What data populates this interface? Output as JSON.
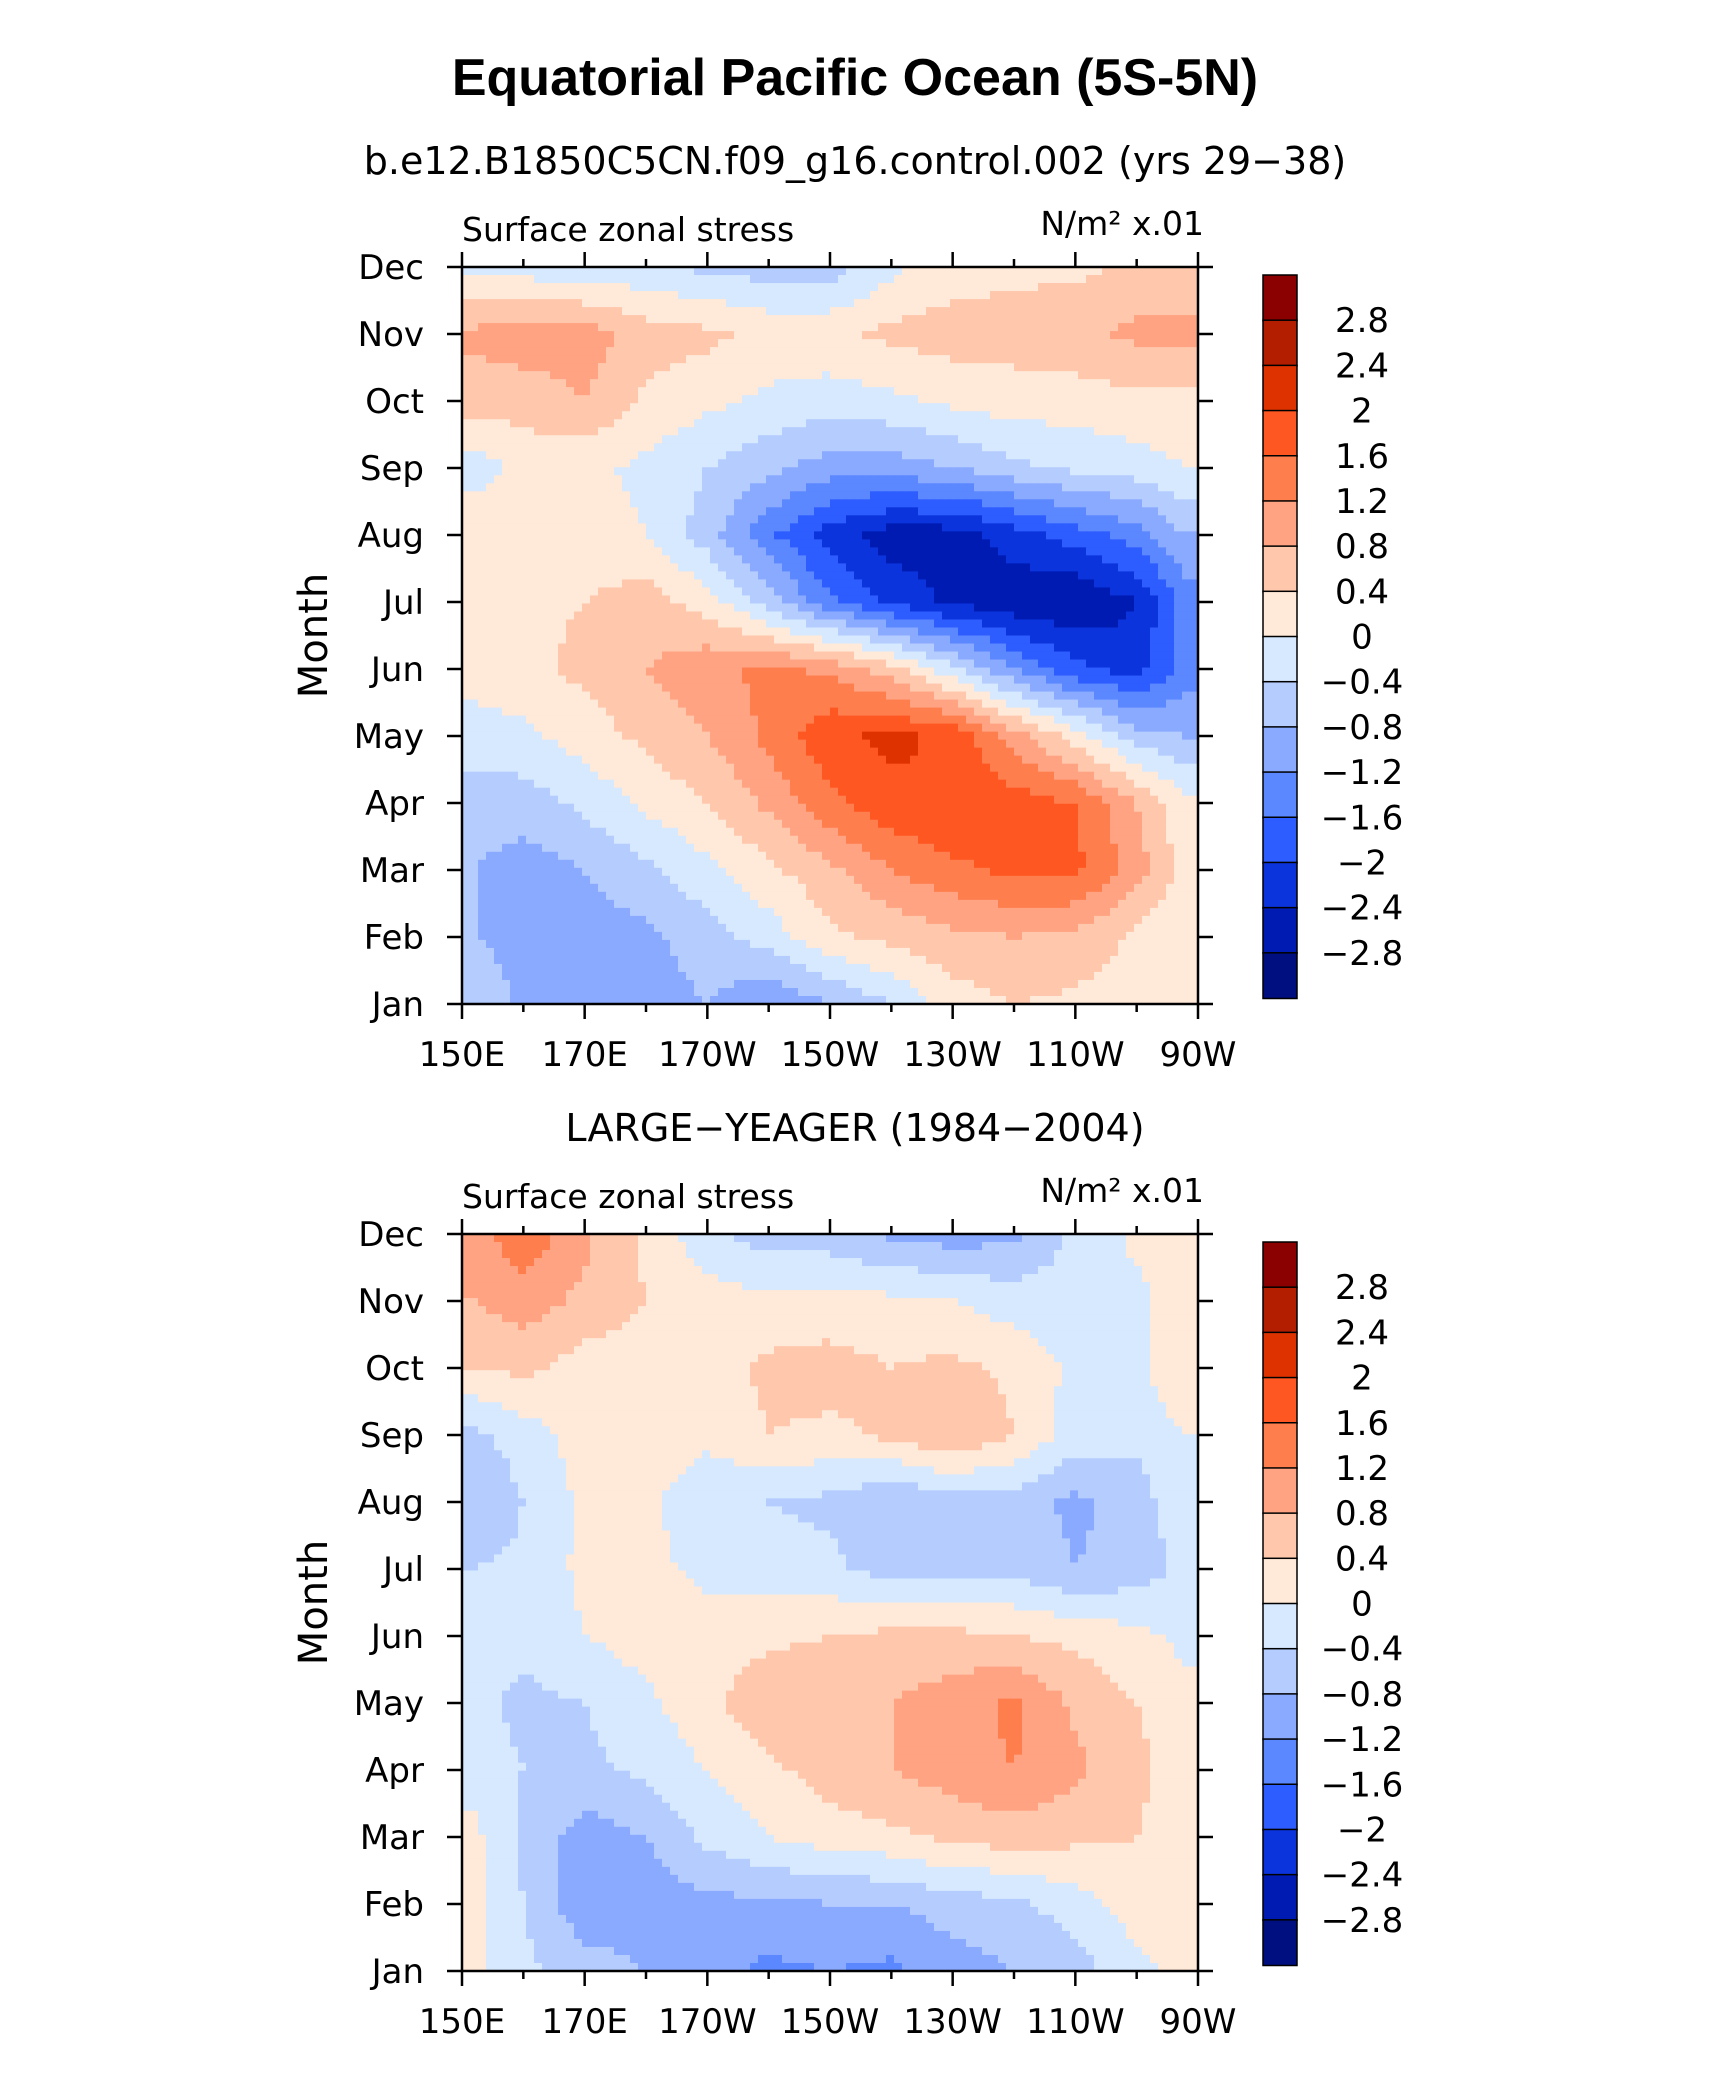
{
  "title": "Equatorial Pacific Ocean (5S-5N)",
  "colorscale": {
    "levels": [
      "2.8",
      "2.4",
      "2",
      "1.6",
      "1.2",
      "0.8",
      "0.4",
      "0",
      "−0.4",
      "−0.8",
      "−1.2",
      "−1.6",
      "−2",
      "−2.4",
      "−2.8"
    ],
    "colors": [
      "#8b0000",
      "#b41e00",
      "#de3300",
      "#ff5722",
      "#ff7e4d",
      "#ffa382",
      "#ffc8ad",
      "#ffe9d8",
      "#d6e9ff",
      "#b5ccff",
      "#8aaaff",
      "#5b87ff",
      "#2d5cff",
      "#0c34dd",
      "#001bb2",
      "#000f80"
    ]
  },
  "chart_data": [
    {
      "type": "heatmap",
      "subtitle": "b.e12.B1850C5CN.f09_g16.control.002 (yrs 29−38)",
      "left_label": "Surface zonal stress",
      "right_label": "N/m² x.01",
      "ylabel": "Month",
      "x_tick_labels": [
        "150E",
        "170E",
        "170W",
        "150W",
        "130W",
        "110W",
        "90W"
      ],
      "x_ticks": [
        150,
        170,
        190,
        210,
        230,
        250,
        270
      ],
      "xlim": [
        150,
        270
      ],
      "y_tick_labels": [
        "Jan",
        "Feb",
        "Mar",
        "Apr",
        "May",
        "Jun",
        "Jul",
        "Aug",
        "Sep",
        "Oct",
        "Nov",
        "Dec"
      ],
      "ylim": [
        1,
        12
      ],
      "x": [
        152,
        160,
        170,
        180,
        190,
        200,
        210,
        220,
        230,
        240,
        250,
        260,
        268
      ],
      "y": [
        1,
        2,
        3,
        4,
        5,
        6,
        7,
        8,
        9,
        10,
        11,
        12
      ],
      "z": [
        [
          -0.4,
          -0.9,
          -1.0,
          -1.0,
          -0.8,
          -1.2,
          -0.8,
          -0.4,
          0.2,
          0.4,
          0.3,
          0.2,
          0.0
        ],
        [
          -0.8,
          -1.0,
          -1.0,
          -0.9,
          -0.6,
          -0.2,
          0.3,
          0.5,
          0.7,
          0.8,
          0.7,
          0.3,
          0.0
        ],
        [
          -0.8,
          -1.0,
          -0.8,
          -0.5,
          -0.1,
          0.3,
          0.7,
          1.2,
          1.5,
          1.7,
          1.7,
          1.0,
          0.2
        ],
        [
          -0.6,
          -0.6,
          -0.3,
          0.1,
          0.4,
          0.9,
          1.5,
          1.9,
          2.0,
          1.8,
          1.6,
          0.8,
          0.1
        ],
        [
          -0.2,
          -0.1,
          0.2,
          0.5,
          0.8,
          1.3,
          1.9,
          2.1,
          1.9,
          1.0,
          0.2,
          -0.6,
          -0.8
        ],
        [
          0.2,
          0.3,
          0.5,
          0.8,
          1.1,
          1.3,
          1.1,
          0.6,
          -0.3,
          -1.2,
          -1.9,
          -2.2,
          -1.4
        ],
        [
          0.3,
          0.3,
          0.4,
          0.6,
          0.2,
          -0.6,
          -1.5,
          -2.1,
          -2.5,
          -2.7,
          -2.8,
          -2.4,
          -1.4
        ],
        [
          0.3,
          0.3,
          0.2,
          0.0,
          -0.6,
          -1.5,
          -2.2,
          -2.6,
          -2.6,
          -2.2,
          -1.8,
          -1.4,
          -0.8
        ],
        [
          -0.2,
          0.1,
          0.1,
          -0.1,
          -0.4,
          -0.7,
          -1.0,
          -1.0,
          -0.8,
          -0.5,
          -0.3,
          -0.2,
          0.0
        ],
        [
          0.6,
          0.6,
          0.8,
          0.3,
          0.1,
          -0.1,
          -0.2,
          -0.1,
          0.1,
          0.2,
          0.2,
          0.3,
          0.3
        ],
        [
          0.9,
          1.0,
          1.0,
          0.6,
          0.5,
          0.3,
          0.3,
          0.5,
          0.6,
          0.6,
          0.7,
          0.9,
          0.9
        ],
        [
          -0.1,
          -0.2,
          -0.3,
          -0.3,
          -0.5,
          -0.6,
          -0.6,
          -0.1,
          0.2,
          0.3,
          0.3,
          0.5,
          0.6
        ]
      ]
    },
    {
      "type": "heatmap",
      "subtitle": "LARGE−YEAGER (1984−2004)",
      "left_label": "Surface zonal stress",
      "right_label": "N/m² x.01",
      "ylabel": "Month",
      "x_tick_labels": [
        "150E",
        "170E",
        "170W",
        "150W",
        "130W",
        "110W",
        "90W"
      ],
      "x_ticks": [
        150,
        170,
        190,
        210,
        230,
        250,
        270
      ],
      "xlim": [
        150,
        270
      ],
      "y_tick_labels": [
        "Jan",
        "Feb",
        "Mar",
        "Apr",
        "May",
        "Jun",
        "Jul",
        "Aug",
        "Sep",
        "Oct",
        "Nov",
        "Dec"
      ],
      "ylim": [
        1,
        12
      ],
      "x": [
        152,
        160,
        170,
        180,
        190,
        200,
        210,
        220,
        230,
        240,
        250,
        260,
        268
      ],
      "y": [
        1,
        2,
        3,
        4,
        5,
        6,
        7,
        8,
        9,
        10,
        11,
        12
      ],
      "z": [
        [
          0.1,
          -0.3,
          -0.6,
          -0.8,
          -1.0,
          -1.3,
          -1.2,
          -1.3,
          -1.0,
          -0.8,
          -0.6,
          -0.1,
          0.1
        ],
        [
          0.1,
          -0.4,
          -1.1,
          -1.0,
          -0.9,
          -0.9,
          -0.8,
          -0.8,
          -0.6,
          -0.5,
          -0.2,
          0.2,
          0.2
        ],
        [
          0.1,
          -0.5,
          -1.0,
          -0.8,
          -0.3,
          0.0,
          0.2,
          0.3,
          0.5,
          0.6,
          0.5,
          0.4,
          0.2
        ],
        [
          -0.2,
          -0.4,
          -0.5,
          -0.3,
          0.0,
          0.3,
          0.6,
          0.8,
          1.0,
          1.2,
          0.9,
          0.5,
          0.2
        ],
        [
          -0.3,
          -0.5,
          -0.4,
          -0.1,
          0.3,
          0.7,
          0.8,
          0.8,
          1.0,
          1.3,
          0.7,
          0.4,
          0.1
        ],
        [
          -0.2,
          -0.3,
          0.0,
          0.2,
          0.2,
          0.3,
          0.4,
          0.5,
          0.5,
          0.4,
          0.3,
          0.1,
          -0.1
        ],
        [
          -0.4,
          -0.3,
          0.1,
          0.1,
          -0.1,
          -0.2,
          -0.3,
          -0.6,
          -0.5,
          -0.5,
          -0.8,
          -0.6,
          -0.3
        ],
        [
          -0.8,
          -0.4,
          0.1,
          0.1,
          -0.3,
          -0.4,
          -0.5,
          -0.8,
          -0.6,
          -0.6,
          -0.9,
          -0.6,
          -0.1
        ],
        [
          -0.5,
          -0.2,
          0.2,
          0.3,
          0.1,
          0.4,
          0.3,
          0.5,
          0.8,
          0.4,
          -0.2,
          -0.3,
          0.0
        ],
        [
          0.4,
          0.5,
          0.2,
          0.2,
          0.2,
          0.5,
          0.6,
          0.4,
          0.5,
          0.3,
          -0.1,
          -0.1,
          0.4
        ],
        [
          0.8,
          1.0,
          0.7,
          0.4,
          0.2,
          0.1,
          0.1,
          0.1,
          0.0,
          -0.2,
          -0.2,
          -0.1,
          0.2
        ],
        [
          1.0,
          1.5,
          0.9,
          0.3,
          -0.3,
          -0.6,
          -0.6,
          -0.9,
          -1.0,
          -0.9,
          -0.3,
          0.1,
          0.2
        ]
      ]
    }
  ]
}
